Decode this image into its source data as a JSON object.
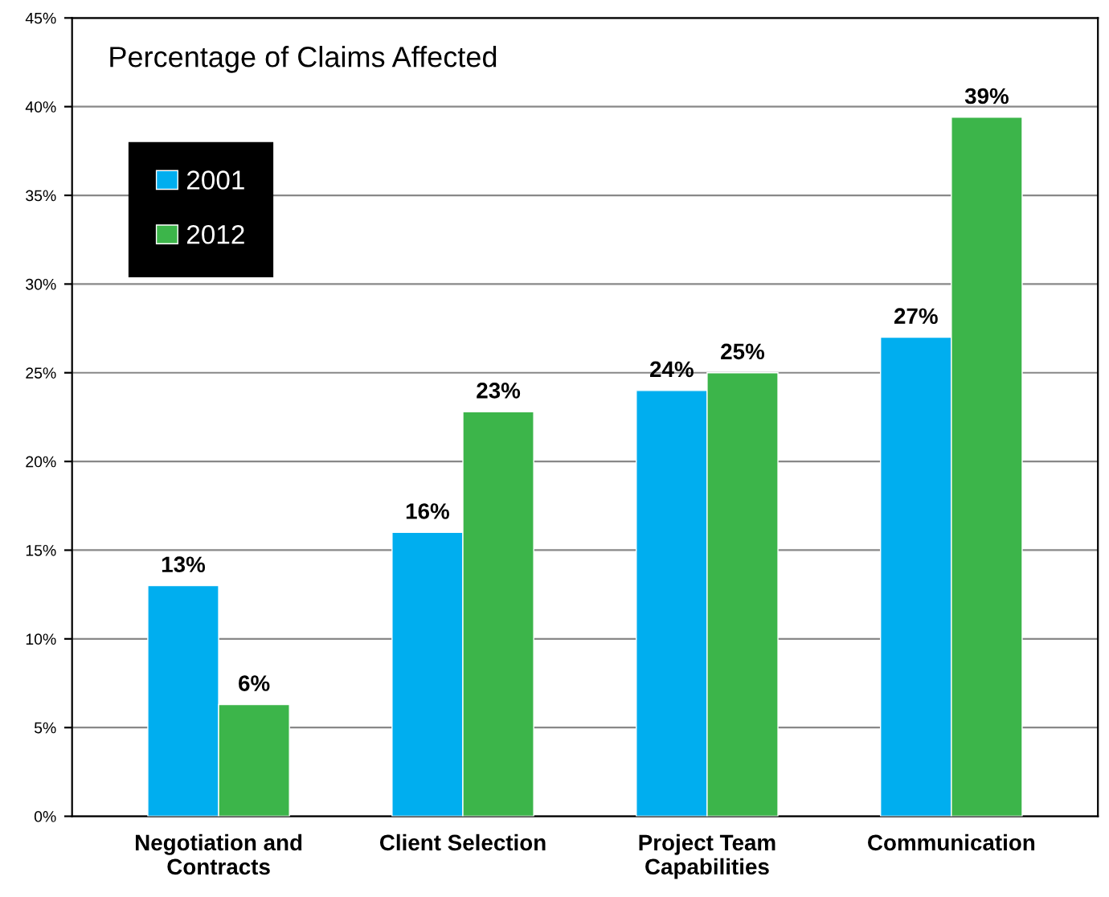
{
  "chart_data": {
    "type": "bar",
    "title": "Percentage of Claims Affected",
    "categories": [
      "Negotiation and\nContracts",
      "Client Selection",
      "Project Team\nCapabilities",
      "Communication"
    ],
    "series": [
      {
        "name": "2001",
        "color": "#00aeef",
        "values": [
          13,
          16,
          24,
          27
        ],
        "value_labels": [
          "13%",
          "16%",
          "24%",
          "27%"
        ]
      },
      {
        "name": "2012",
        "color": "#3cb54a",
        "values": [
          6.3,
          22.8,
          25,
          39.4
        ],
        "value_labels": [
          "6%",
          "23%",
          "25%",
          "39%"
        ]
      }
    ],
    "ylim": [
      0,
      45
    ],
    "yticks": [
      {
        "value": 0,
        "label": "0%"
      },
      {
        "value": 5,
        "label": "5%"
      },
      {
        "value": 10,
        "label": "10%"
      },
      {
        "value": 15,
        "label": "15%"
      },
      {
        "value": 20,
        "label": "20%"
      },
      {
        "value": 25,
        "label": "25%"
      },
      {
        "value": 30,
        "label": "30%"
      },
      {
        "value": 35,
        "label": "35%"
      },
      {
        "value": 40,
        "label": "40%"
      },
      {
        "value": 45,
        "label": "45%"
      }
    ],
    "grid": "y",
    "legend": "top left"
  }
}
